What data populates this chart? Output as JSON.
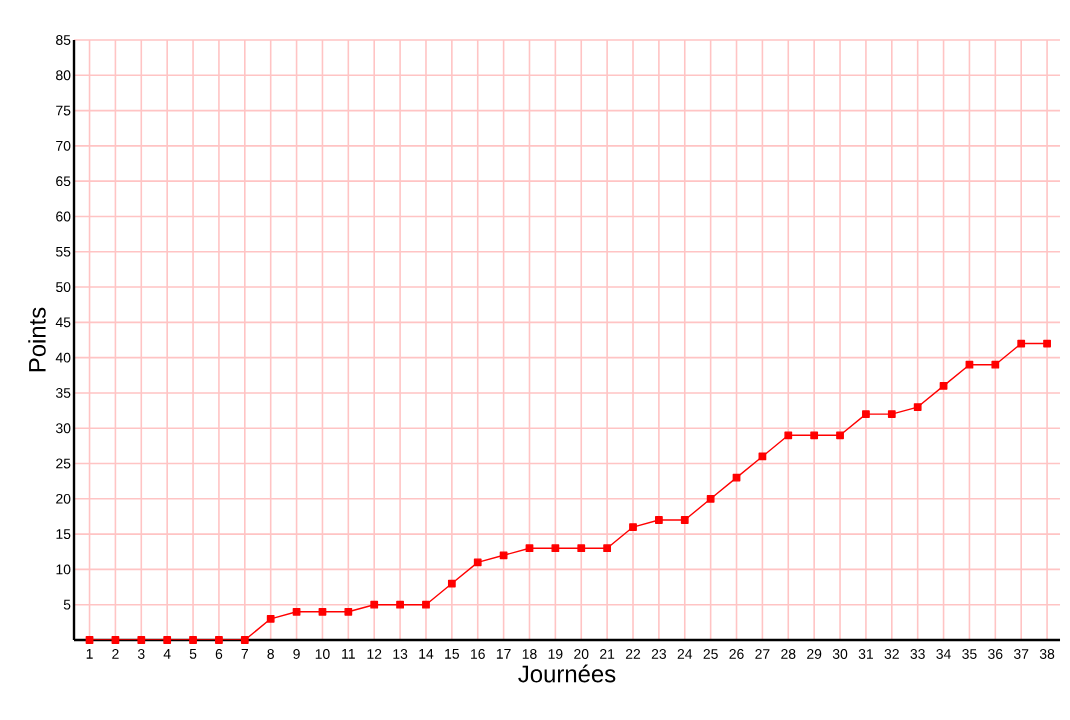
{
  "chart_data": {
    "type": "line",
    "xlabel": "Journées",
    "ylabel": "Points",
    "categories": [
      "1",
      "2",
      "3",
      "4",
      "5",
      "6",
      "7",
      "8",
      "9",
      "10",
      "11",
      "12",
      "13",
      "14",
      "15",
      "16",
      "17",
      "18",
      "19",
      "20",
      "21",
      "22",
      "23",
      "24",
      "25",
      "26",
      "27",
      "28",
      "29",
      "30",
      "31",
      "32",
      "33",
      "34",
      "35",
      "36",
      "37",
      "38"
    ],
    "values": [
      0,
      0,
      0,
      0,
      0,
      0,
      0,
      3,
      4,
      4,
      4,
      5,
      5,
      5,
      8,
      11,
      12,
      13,
      13,
      13,
      13,
      16,
      17,
      17,
      20,
      23,
      26,
      29,
      29,
      29,
      32,
      32,
      33,
      36,
      39,
      39,
      42,
      42
    ],
    "color": "#ff0000",
    "marker": "square",
    "line_style": "solid",
    "grid": true,
    "ylim": [
      0,
      85
    ],
    "yticks": [
      5,
      10,
      15,
      20,
      25,
      30,
      35,
      40,
      45,
      50,
      55,
      60,
      65,
      70,
      75,
      80,
      85
    ]
  }
}
